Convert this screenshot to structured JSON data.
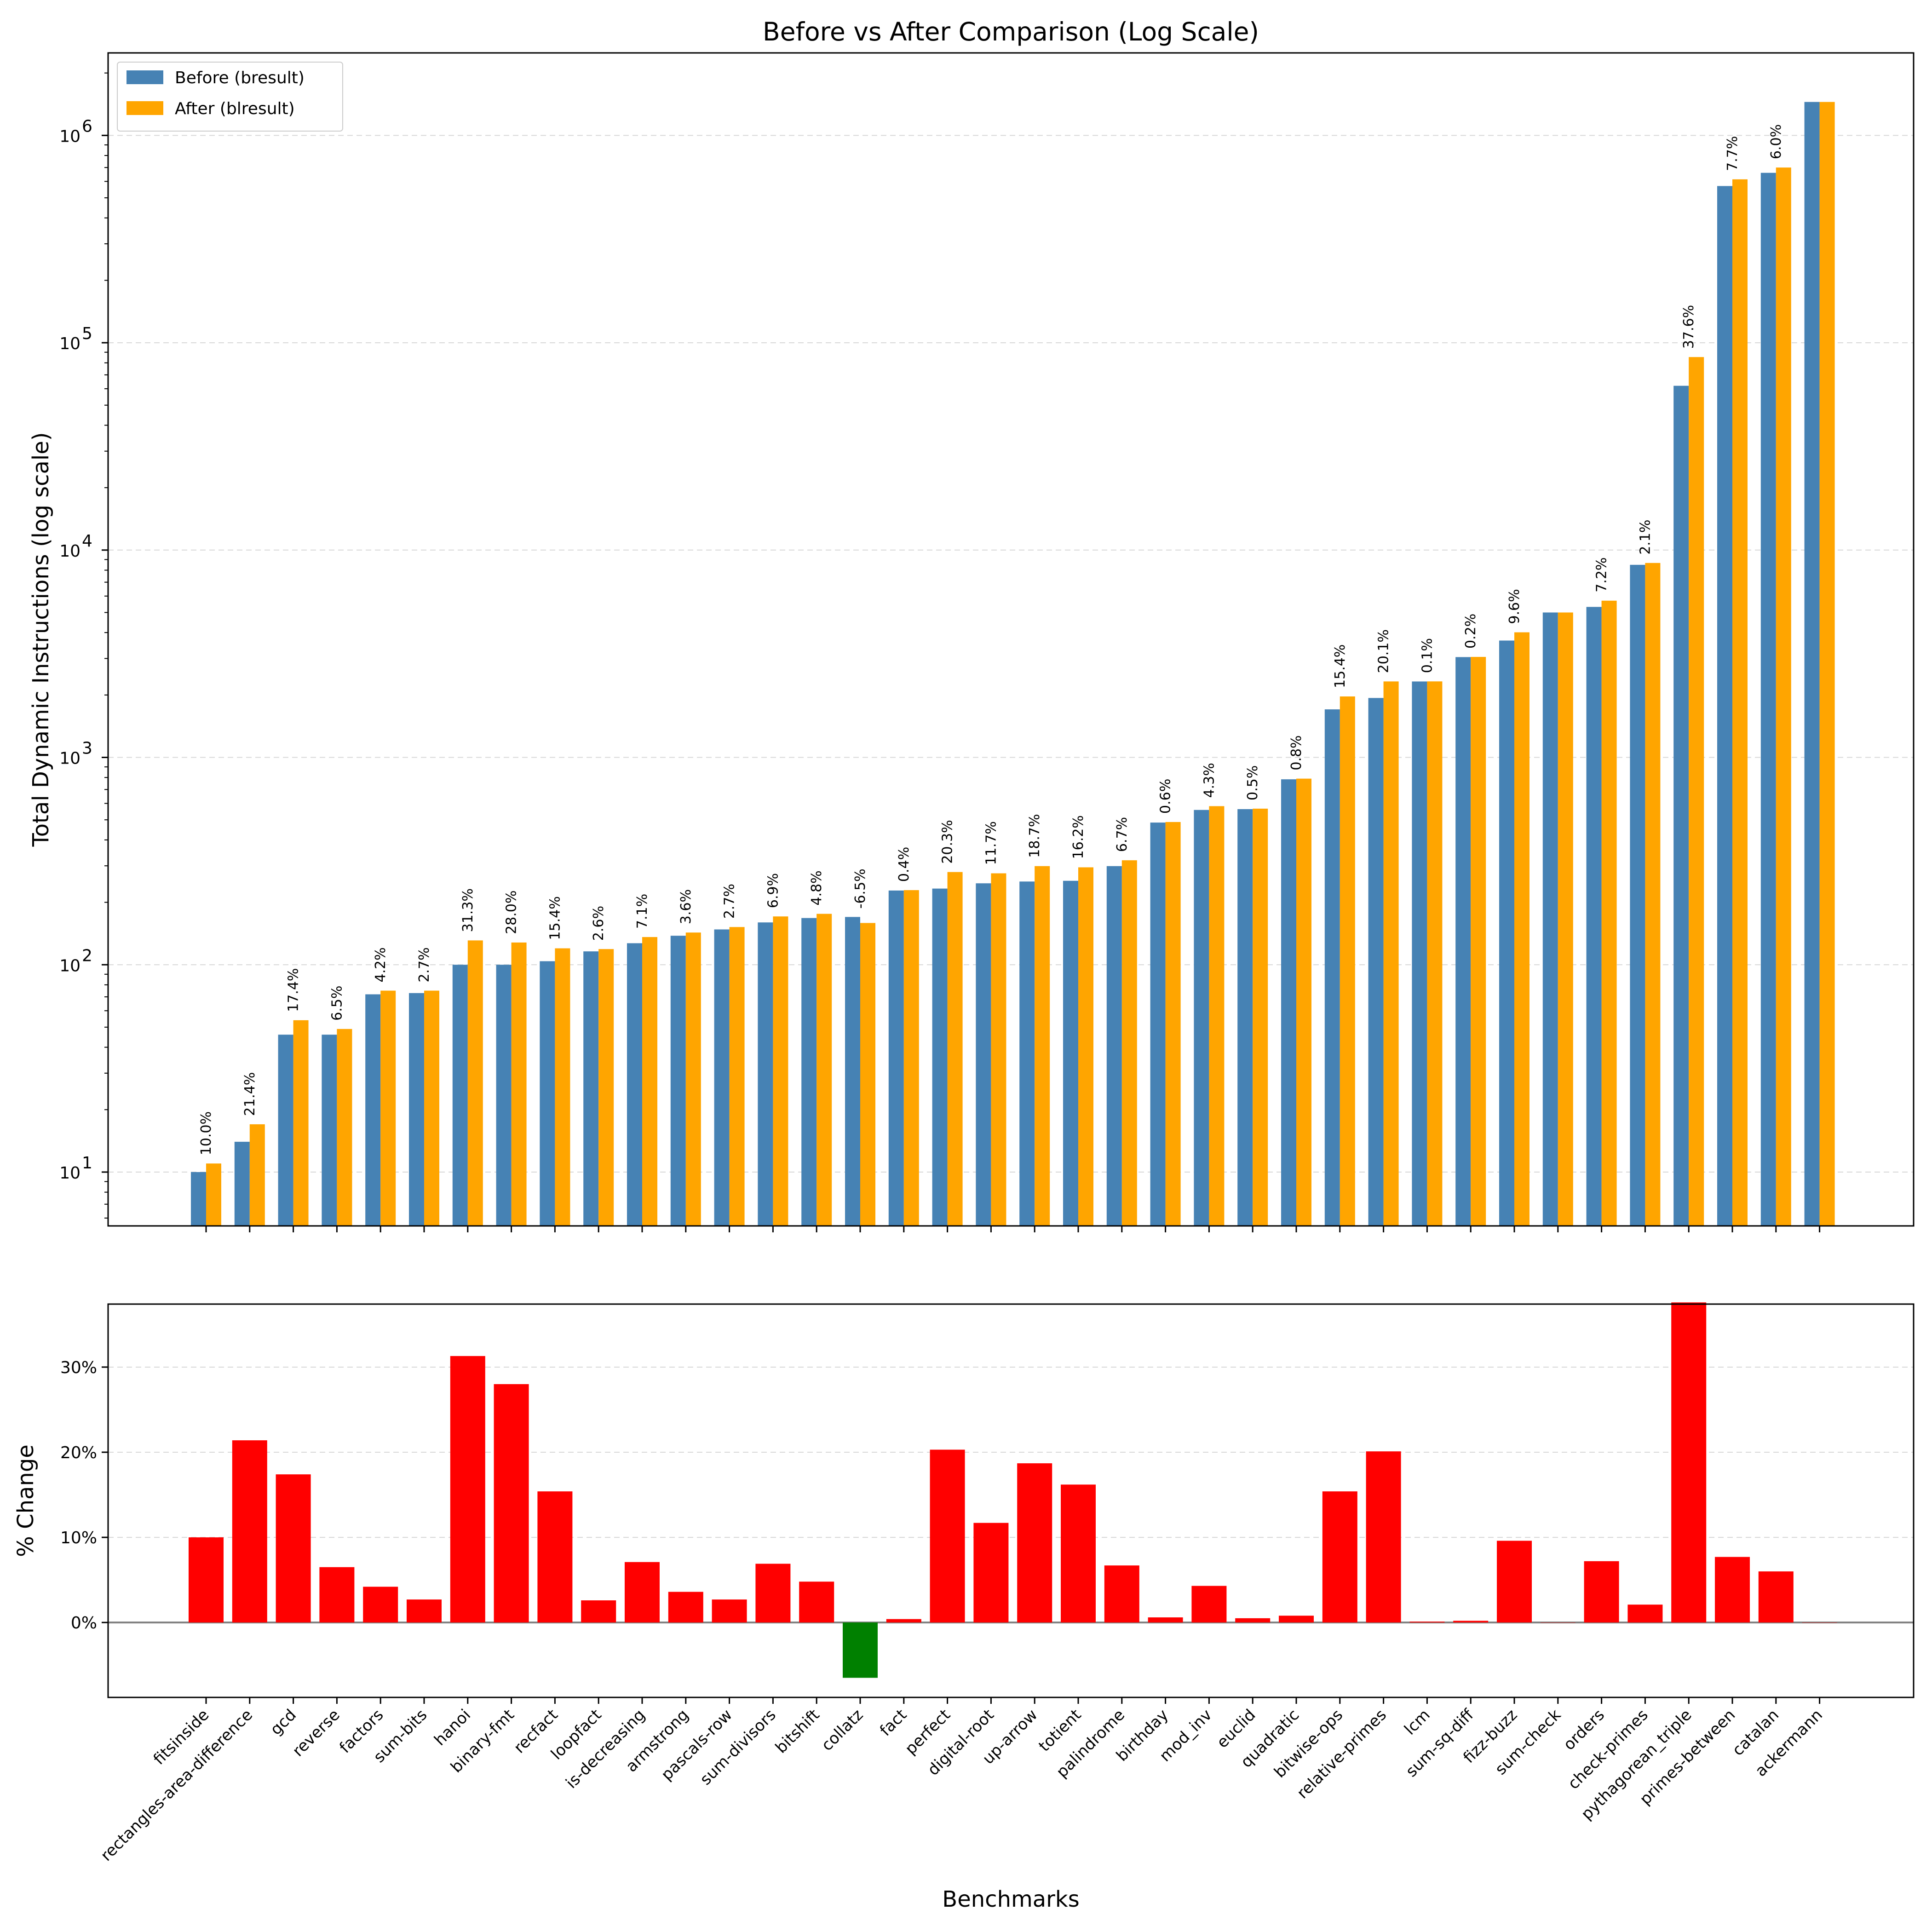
{
  "chart_data": [
    {
      "type": "bar",
      "title": "Before vs After Comparison (Log Scale)",
      "xlabel": "",
      "ylabel": "Total Dynamic Instructions (log scale)",
      "yscale": "log",
      "ylim": [
        5.5,
        2500000
      ],
      "yticks": [
        {
          "value": 10,
          "base": "10",
          "exp": "1"
        },
        {
          "value": 100,
          "base": "10",
          "exp": "2"
        },
        {
          "value": 1000,
          "base": "10",
          "exp": "3"
        },
        {
          "value": 10000,
          "base": "10",
          "exp": "4"
        },
        {
          "value": 100000,
          "base": "10",
          "exp": "5"
        },
        {
          "value": 1000000,
          "base": "10",
          "exp": "6"
        }
      ],
      "grid": true,
      "legend_position": "top-left",
      "colors": {
        "before": "#4682b4",
        "after": "#ffa500"
      },
      "categories": [
        "fitsinside",
        "rectangles-area-difference",
        "gcd",
        "reverse",
        "factors",
        "sum-bits",
        "hanoi",
        "binary-fmt",
        "recfact",
        "loopfact",
        "is-decreasing",
        "armstrong",
        "pascals-row",
        "sum-divisors",
        "bitshift",
        "collatz",
        "fact",
        "perfect",
        "digital-root",
        "up-arrow",
        "totient",
        "palindrome",
        "birthday",
        "mod_inv",
        "euclid",
        "quadratic",
        "bitwise-ops",
        "relative-primes",
        "lcm",
        "sum-sq-diff",
        "fizz-buzz",
        "sum-check",
        "orders",
        "check-primes",
        "pythagorean_triple",
        "primes-between",
        "catalan",
        "ackermann"
      ],
      "series": [
        {
          "name": "Before (bresult)",
          "values": [
            10,
            14,
            46,
            46,
            72,
            73,
            100,
            100,
            104,
            116,
            127,
            138,
            148,
            160,
            168,
            170,
            228,
            233,
            247,
            252,
            254,
            299,
            485,
            558,
            563,
            784,
            1705,
            1935,
            2324,
            3047,
            3661,
            5000,
            5319,
            8489,
            62000,
            570000,
            660000,
            1450000
          ]
        },
        {
          "name": "After (blresult)",
          "values": [
            11,
            17,
            54,
            49,
            75,
            75,
            131,
            128,
            120,
            119,
            136,
            143,
            152,
            171,
            176,
            159,
            229,
            280,
            276,
            299,
            295,
            319,
            488,
            582,
            566,
            790,
            1968,
            2325,
            2326,
            3053,
            4012,
            5000,
            5701,
            8667,
            85300,
            614000,
            700000,
            1450000
          ]
        }
      ],
      "data_labels": [
        "10.0%",
        "21.4%",
        "17.4%",
        "6.5%",
        "4.2%",
        "2.7%",
        "31.3%",
        "28.0%",
        "15.4%",
        "2.6%",
        "7.1%",
        "3.6%",
        "2.7%",
        "6.9%",
        "4.8%",
        "-6.5%",
        "0.4%",
        "20.3%",
        "11.7%",
        "18.7%",
        "16.2%",
        "6.7%",
        "0.6%",
        "4.3%",
        "0.5%",
        "0.8%",
        "15.4%",
        "20.1%",
        "0.1%",
        "0.2%",
        "9.6%",
        "",
        "7.2%",
        "2.1%",
        "37.6%",
        "7.7%",
        "6.0%",
        ""
      ]
    },
    {
      "type": "bar",
      "title": "",
      "xlabel": "Benchmarks",
      "ylabel": "% Change",
      "ylim": [
        -8.8,
        37.4
      ],
      "yticks": [
        {
          "value": 0,
          "label": "0%"
        },
        {
          "value": 10,
          "label": "10%"
        },
        {
          "value": 20,
          "label": "20%"
        },
        {
          "value": 30,
          "label": "30%"
        }
      ],
      "grid": true,
      "colors": {
        "positive": "#ff0000",
        "negative": "#008000"
      },
      "categories": [
        "fitsinside",
        "rectangles-area-difference",
        "gcd",
        "reverse",
        "factors",
        "sum-bits",
        "hanoi",
        "binary-fmt",
        "recfact",
        "loopfact",
        "is-decreasing",
        "armstrong",
        "pascals-row",
        "sum-divisors",
        "bitshift",
        "collatz",
        "fact",
        "perfect",
        "digital-root",
        "up-arrow",
        "totient",
        "palindrome",
        "birthday",
        "mod_inv",
        "euclid",
        "quadratic",
        "bitwise-ops",
        "relative-primes",
        "lcm",
        "sum-sq-diff",
        "fizz-buzz",
        "sum-check",
        "orders",
        "check-primes",
        "pythagorean_triple",
        "primes-between",
        "catalan",
        "ackermann"
      ],
      "values": [
        10.0,
        21.4,
        17.4,
        6.5,
        4.2,
        2.7,
        31.3,
        28.0,
        15.4,
        2.6,
        7.1,
        3.6,
        2.7,
        6.9,
        4.8,
        -6.5,
        0.4,
        20.3,
        11.7,
        18.7,
        16.2,
        6.7,
        0.6,
        4.3,
        0.5,
        0.8,
        15.4,
        20.1,
        0.1,
        0.2,
        9.6,
        0.0,
        7.2,
        2.1,
        37.6,
        7.7,
        6.0,
        0.0
      ]
    }
  ]
}
